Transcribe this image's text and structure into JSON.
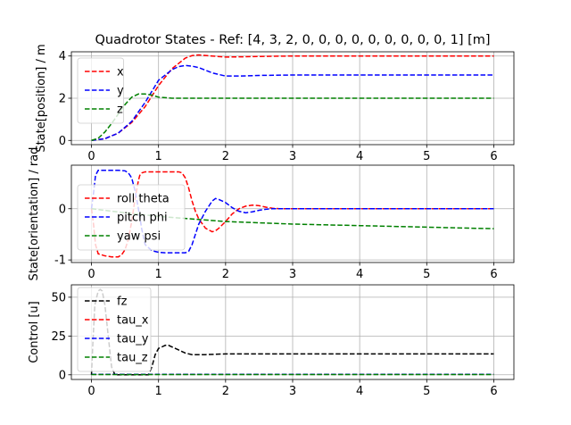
{
  "chart_data": [
    {
      "type": "line",
      "title": "Quadrotor States - Ref: [4, 3, 2, 0, 0, 0, 0, 0, 0, 0, 0, 0, 1] [m]",
      "ylabel": "State[position] / m",
      "xlim": [
        -0.3,
        6.3
      ],
      "ylim": [
        -0.2,
        4.2
      ],
      "xticks": [
        0,
        1,
        2,
        3,
        4,
        5,
        6
      ],
      "yticks": [
        0,
        2,
        4
      ],
      "grid": true,
      "legend_position": "top-left",
      "series": [
        {
          "name": "x",
          "color": "#ff0000",
          "x": [
            0,
            0.2,
            0.4,
            0.6,
            0.8,
            1.0,
            1.2,
            1.4,
            1.5,
            1.6,
            1.8,
            2.0,
            2.2,
            2.5,
            3,
            4,
            5,
            6
          ],
          "y": [
            0,
            0.08,
            0.35,
            0.85,
            1.6,
            2.6,
            3.4,
            3.9,
            4.02,
            4.05,
            4.0,
            3.95,
            3.96,
            3.98,
            4.0,
            4.0,
            4.0,
            4.0
          ]
        },
        {
          "name": "y",
          "color": "#0000ff",
          "x": [
            0,
            0.2,
            0.4,
            0.6,
            0.8,
            1.0,
            1.2,
            1.3,
            1.4,
            1.5,
            1.6,
            1.8,
            2.0,
            2.2,
            2.5,
            3,
            4,
            5,
            6
          ],
          "y": [
            0,
            0.08,
            0.35,
            0.9,
            1.8,
            2.85,
            3.35,
            3.5,
            3.55,
            3.52,
            3.45,
            3.2,
            3.05,
            3.05,
            3.08,
            3.1,
            3.1,
            3.1,
            3.1
          ]
        },
        {
          "name": "z",
          "color": "#008000",
          "x": [
            0,
            0.1,
            0.2,
            0.3,
            0.4,
            0.5,
            0.6,
            0.7,
            0.8,
            0.9,
            1.0,
            1.2,
            1.5,
            2,
            3,
            4,
            5,
            6
          ],
          "y": [
            0,
            0.1,
            0.4,
            0.8,
            1.25,
            1.7,
            2.05,
            2.2,
            2.2,
            2.15,
            2.05,
            2.0,
            2.0,
            2.0,
            2.0,
            2.0,
            2.0,
            2.0
          ]
        }
      ]
    },
    {
      "type": "line",
      "title": "",
      "ylabel": "State[orientation] / rad",
      "xlim": [
        -0.3,
        6.3
      ],
      "ylim": [
        -1.05,
        0.85
      ],
      "xticks": [
        0,
        1,
        2,
        3,
        4,
        5,
        6
      ],
      "yticks": [
        -1,
        0
      ],
      "grid": true,
      "legend_position": "center-left",
      "series": [
        {
          "name": "roll theta",
          "color": "#ff0000",
          "x": [
            0,
            0.03,
            0.06,
            0.1,
            0.2,
            0.3,
            0.4,
            0.45,
            0.5,
            0.55,
            0.6,
            0.65,
            0.7,
            0.72,
            0.75,
            0.8,
            0.9,
            1.0,
            1.1,
            1.2,
            1.3,
            1.35,
            1.4,
            1.45,
            1.5,
            1.55,
            1.6,
            1.7,
            1.8,
            1.85,
            1.9,
            2.0,
            2.1,
            2.2,
            2.3,
            2.4,
            2.5,
            2.6,
            2.7,
            2.8,
            3.0,
            4,
            5,
            6
          ],
          "y": [
            0,
            -0.3,
            -0.7,
            -0.88,
            -0.92,
            -0.94,
            -0.94,
            -0.9,
            -0.8,
            -0.6,
            -0.25,
            0.2,
            0.55,
            0.65,
            0.7,
            0.72,
            0.72,
            0.72,
            0.72,
            0.72,
            0.72,
            0.7,
            0.6,
            0.4,
            0.15,
            -0.05,
            -0.2,
            -0.38,
            -0.45,
            -0.43,
            -0.38,
            -0.25,
            -0.1,
            0.0,
            0.05,
            0.07,
            0.06,
            0.03,
            0.01,
            0.0,
            0.0,
            0.0,
            0.0,
            0.0
          ]
        },
        {
          "name": "pitch phi",
          "color": "#0000ff",
          "x": [
            0,
            0.03,
            0.06,
            0.1,
            0.2,
            0.3,
            0.4,
            0.5,
            0.55,
            0.6,
            0.65,
            0.7,
            0.75,
            0.8,
            0.9,
            1.0,
            1.1,
            1.2,
            1.3,
            1.4,
            1.45,
            1.5,
            1.55,
            1.6,
            1.7,
            1.8,
            1.85,
            1.9,
            2.0,
            2.1,
            2.2,
            2.3,
            2.4,
            2.5,
            2.6,
            2.7,
            3.0,
            4,
            5,
            6
          ],
          "y": [
            0,
            0.3,
            0.65,
            0.75,
            0.75,
            0.75,
            0.75,
            0.74,
            0.7,
            0.6,
            0.35,
            0.0,
            -0.4,
            -0.7,
            -0.82,
            -0.85,
            -0.86,
            -0.86,
            -0.86,
            -0.86,
            -0.83,
            -0.7,
            -0.5,
            -0.3,
            -0.05,
            0.15,
            0.2,
            0.18,
            0.12,
            0.02,
            -0.05,
            -0.08,
            -0.06,
            -0.03,
            -0.01,
            0.0,
            0.0,
            0.0,
            0.0,
            0.0
          ]
        },
        {
          "name": "yaw psi",
          "color": "#008000",
          "x": [
            0,
            0.5,
            1,
            2,
            3,
            4,
            5,
            6
          ],
          "y": [
            0,
            -0.08,
            -0.15,
            -0.25,
            -0.3,
            -0.33,
            -0.36,
            -0.39
          ]
        }
      ]
    },
    {
      "type": "line",
      "title": "",
      "ylabel": "Control [u]",
      "xlim": [
        -0.3,
        6.3
      ],
      "ylim": [
        -3,
        58
      ],
      "xticks": [
        0,
        1,
        2,
        3,
        4,
        5,
        6
      ],
      "yticks": [
        0,
        25,
        50
      ],
      "grid": true,
      "legend_position": "top-left",
      "series": [
        {
          "name": "fz",
          "color": "#000000",
          "x": [
            0,
            0.02,
            0.05,
            0.1,
            0.13,
            0.16,
            0.2,
            0.25,
            0.3,
            0.35,
            0.5,
            0.7,
            0.85,
            0.9,
            0.95,
            1.0,
            1.1,
            1.15,
            1.2,
            1.3,
            1.4,
            1.5,
            1.7,
            2,
            3,
            4,
            5,
            6
          ],
          "y": [
            0,
            20,
            45,
            54,
            55,
            54,
            45,
            25,
            5,
            0,
            0,
            0,
            0,
            5,
            13,
            17,
            19,
            19,
            18,
            16,
            14,
            13,
            13,
            13.5,
            13.5,
            13.5,
            13.5,
            13.5
          ]
        },
        {
          "name": "tau_x",
          "color": "#ff0000",
          "x": [
            0,
            1,
            2,
            3,
            4,
            5,
            6
          ],
          "y": [
            0.3,
            0.3,
            0.3,
            0.3,
            0.3,
            0.3,
            0.3
          ]
        },
        {
          "name": "tau_y",
          "color": "#0000ff",
          "x": [
            0,
            1,
            2,
            3,
            4,
            5,
            6
          ],
          "y": [
            0.3,
            0.3,
            0.3,
            0.3,
            0.3,
            0.3,
            0.3
          ]
        },
        {
          "name": "tau_z",
          "color": "#008000",
          "x": [
            0,
            1,
            2,
            3,
            4,
            5,
            6
          ],
          "y": [
            0.2,
            0.2,
            0.2,
            0.2,
            0.2,
            0.2,
            0.2
          ]
        }
      ]
    }
  ]
}
